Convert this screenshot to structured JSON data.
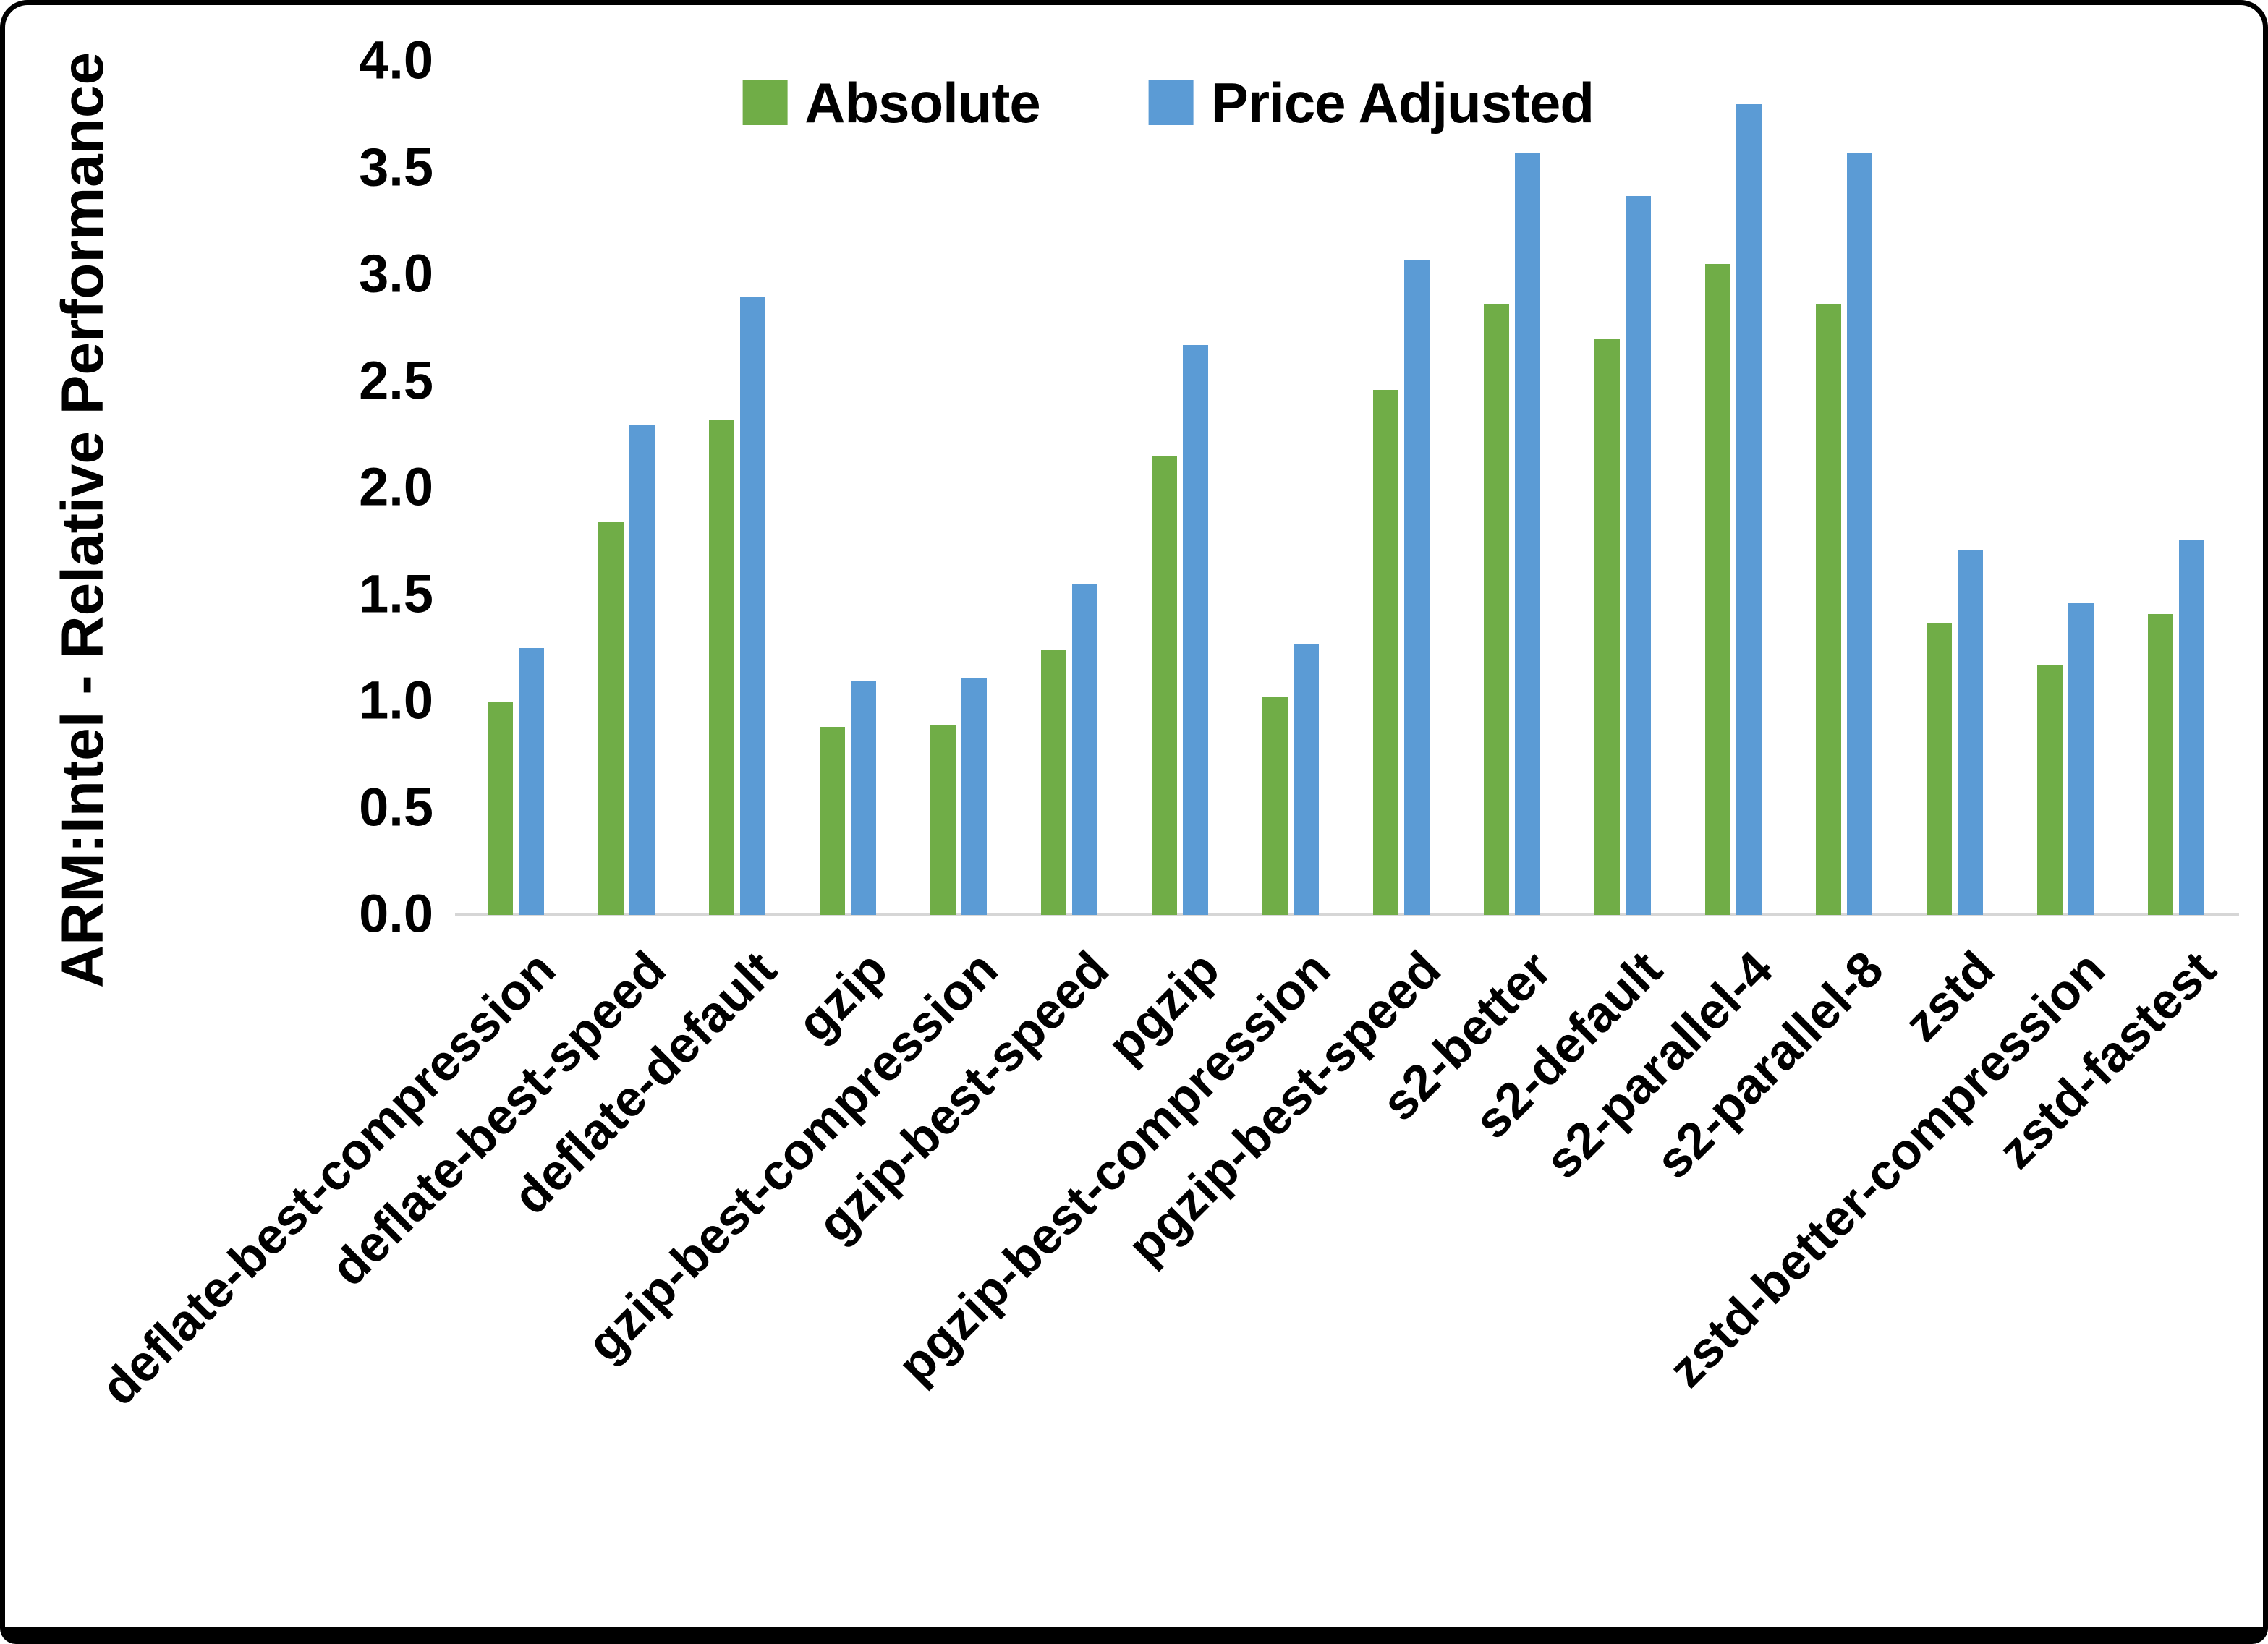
{
  "chart_data": {
    "type": "bar",
    "title": "",
    "xlabel": "",
    "ylabel": "ARM:Intel - Relative Performance",
    "ylim": [
      0.0,
      4.0
    ],
    "ytick_step": 0.5,
    "yticks": [
      "0.0",
      "0.5",
      "1.0",
      "1.5",
      "2.0",
      "2.5",
      "3.0",
      "3.5",
      "4.0"
    ],
    "grid": false,
    "legend_position": "top-center",
    "categories": [
      "deflate-best-compression",
      "deflate-best-speed",
      "deflate-default",
      "gzip",
      "gzip-best-compression",
      "gzip-best-speed",
      "pgzip",
      "pgzip-best-compression",
      "pgzip-best-speed",
      "s2-better",
      "s2-default",
      "s2-parallel-4",
      "s2-parallel-8",
      "zstd",
      "zstd-better-compression",
      "zstd-fastest"
    ],
    "series": [
      {
        "name": "Absolute",
        "color": "#70AD47",
        "values": [
          1.0,
          1.84,
          2.32,
          0.88,
          0.89,
          1.24,
          2.15,
          1.02,
          2.46,
          2.86,
          2.7,
          3.05,
          2.86,
          1.37,
          1.17,
          1.41
        ]
      },
      {
        "name": "Price Adjusted",
        "color": "#5B9BD5",
        "values": [
          1.25,
          2.3,
          2.9,
          1.1,
          1.11,
          1.55,
          2.67,
          1.27,
          3.07,
          3.57,
          3.37,
          3.8,
          3.57,
          1.71,
          1.46,
          1.76
        ]
      }
    ],
    "axis_line_color": "#D6D6D6"
  }
}
